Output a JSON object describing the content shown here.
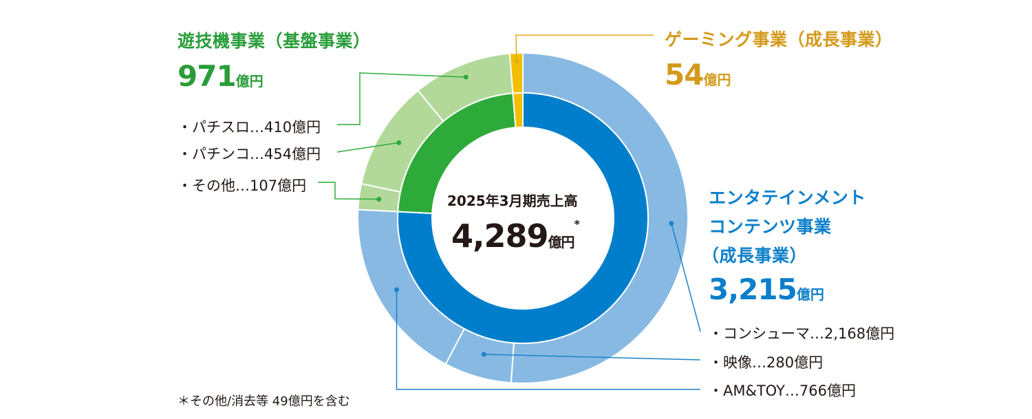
{
  "chart_data": {
    "type": "pie",
    "center": {
      "title": "2025年3月期売上高",
      "amount": "4,289",
      "unit": "億円",
      "mark": "*"
    },
    "inner": [
      {
        "name": "遊技機事業",
        "value": 971,
        "color": "#2eaa3a"
      },
      {
        "name": "エンタテインメントコンテンツ事業",
        "value": 3215,
        "color": "#007ecb"
      },
      {
        "name": "ゲーミング事業",
        "value": 54,
        "color": "#f4be00"
      }
    ],
    "outer": [
      {
        "name": "パチスロ",
        "value": 410,
        "color": "#b2d99a"
      },
      {
        "name": "パチンコ",
        "value": 454,
        "color": "#b2d99a"
      },
      {
        "name": "その他",
        "value": 107,
        "color": "#b2d99a"
      },
      {
        "name": "コンシューマ",
        "value": 2168,
        "color": "#87b9e3"
      },
      {
        "name": "映像",
        "value": 280,
        "color": "#87b9e3"
      },
      {
        "name": "AM&TOY",
        "value": 766,
        "color": "#87b9e3"
      },
      {
        "name": "ゲーミング",
        "value": 54,
        "color": "#f4be00"
      }
    ],
    "gaming_outer_note": "outer ring gaming segment equals the inner gaming slice"
  },
  "segments": {
    "yugi": {
      "title": "遊技機事業（基盤事業）",
      "amount": "971",
      "unit": "億円",
      "items": [
        "・パチスロ…410億円",
        "・パチンコ…454億円",
        "・その他…107億円"
      ]
    },
    "gaming": {
      "title": "ゲーミング事業（成長事業）",
      "amount": "54",
      "unit": "億円"
    },
    "entertainment": {
      "title_lines": [
        "エンタテインメント",
        "コンテンツ事業",
        "（成長事業）"
      ],
      "amount": "3,215",
      "unit": "億円",
      "items": [
        "・コンシューマ…2,168億円",
        "・映像…280億円",
        "・AM&TOY…766億円"
      ]
    }
  },
  "footnote": "＊その他/消去等 49億円を含む",
  "colors": {
    "green_line": "#2eaa3a",
    "gold_line": "#e1a91a",
    "blue_line": "#1a82c8"
  }
}
